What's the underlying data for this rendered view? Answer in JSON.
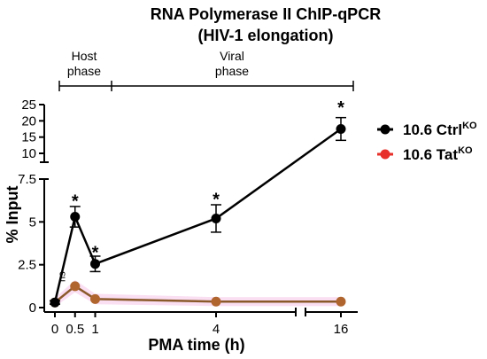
{
  "chart_data": {
    "type": "line",
    "title_line1": "RNA Polymerase II ChIP-qPCR",
    "title_line2": "(HIV-1 elongation)",
    "xlabel": "PMA time (h)",
    "ylabel": "% Input",
    "x_tick_labels": [
      "0",
      "0.5",
      "1",
      "4",
      "16"
    ],
    "y_tick_labels_lower": [
      "0",
      "2.5",
      "5",
      "7.5"
    ],
    "y_tick_labels_upper": [
      "10",
      "15",
      "20",
      "25"
    ],
    "y_axis_break": true,
    "x_axis_break": true,
    "phases": [
      {
        "label_line1": "Host",
        "label_line2": "phase",
        "x_range": [
          0,
          1
        ]
      },
      {
        "label_line1": "Viral",
        "label_line2": "phase",
        "x_range": [
          1,
          16
        ]
      }
    ],
    "series": [
      {
        "name": "10.6 Ctrl",
        "superscript": "KO",
        "color": "#000000",
        "x": [
          0,
          0.5,
          1,
          4,
          16
        ],
        "y": [
          0.3,
          5.3,
          2.55,
          5.2,
          17.5
        ],
        "error": [
          0.1,
          0.6,
          0.45,
          0.8,
          3.5
        ]
      },
      {
        "name": "10.6 Tat",
        "superscript": "KO",
        "color": "#e8302a",
        "x": [
          0,
          0.5,
          1,
          4,
          16
        ],
        "y": [
          0.3,
          1.25,
          0.5,
          0.35,
          0.35
        ],
        "error": [
          0.05,
          0.15,
          0.1,
          0.05,
          0.05
        ]
      }
    ],
    "annotations": [
      {
        "text": "ns",
        "x": 0.25,
        "y": 1.8
      },
      {
        "text": "*",
        "x": 0.5,
        "y": 6.4
      },
      {
        "text": "*",
        "x": 1,
        "y": 3.4
      },
      {
        "text": "*",
        "x": 4,
        "y": 6.5
      },
      {
        "text": "*",
        "x": 16,
        "y": 25
      }
    ],
    "grid": false,
    "legend_position": "right"
  }
}
